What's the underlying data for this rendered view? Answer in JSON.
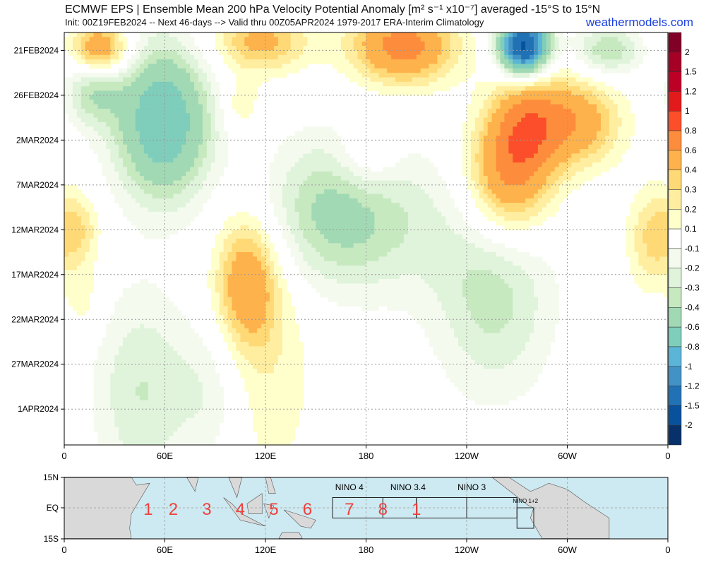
{
  "header": {
    "title": "ECMWF EPS | Ensemble Mean 200 hPa Velocity Potential Anomaly [m² s⁻¹ x10⁻⁷] averaged -15°S to 15°N",
    "subtitle": "Init: 00Z19FEB2024 -- Next 46-days --> Valid thru 00Z05APR2024 1979-2017 ERA-Interim Climatology",
    "brand": "weathermodels.com"
  },
  "chart_data": {
    "type": "heatmap",
    "x_range_lon_east": [
      0,
      360
    ],
    "x_ticks": [
      {
        "lon": 0,
        "label": "0"
      },
      {
        "lon": 60,
        "label": "60E"
      },
      {
        "lon": 120,
        "label": "120E"
      },
      {
        "lon": 180,
        "label": "180"
      },
      {
        "lon": 240,
        "label": "120W"
      },
      {
        "lon": 300,
        "label": "60W"
      },
      {
        "lon": 360,
        "label": "0"
      }
    ],
    "y_range": [
      "19FEB2024",
      "05APR2024"
    ],
    "y_ticks": [
      {
        "day": 2,
        "label": "21FEB2024"
      },
      {
        "day": 7,
        "label": "26FEB2024"
      },
      {
        "day": 12,
        "label": "2MAR2024"
      },
      {
        "day": 17,
        "label": "7MAR2024"
      },
      {
        "day": 22,
        "label": "12MAR2024"
      },
      {
        "day": 27,
        "label": "17MAR2024"
      },
      {
        "day": 32,
        "label": "22MAR2024"
      },
      {
        "day": 37,
        "label": "27MAR2024"
      },
      {
        "day": 42,
        "label": "1APR2024"
      }
    ],
    "grid": true,
    "levels": [
      -2,
      -1.5,
      -1.2,
      -1,
      -0.8,
      -0.6,
      -0.4,
      -0.3,
      -0.2,
      -0.1,
      0.1,
      0.2,
      0.3,
      0.4,
      0.6,
      0.8,
      1,
      1.2,
      1.5,
      2
    ],
    "colorbar_labels": [
      "2",
      "1.5",
      "1.2",
      "1",
      "0.8",
      "0.6",
      "0.4",
      "0.3",
      "0.2",
      "0.1",
      "-0.1",
      "-0.2",
      "-0.3",
      "-0.4",
      "-0.6",
      "-0.8",
      "-1",
      "-1.2",
      "-1.5",
      "-2"
    ],
    "colors": [
      "#08306b",
      "#08519c",
      "#2171b5",
      "#4292c6",
      "#5bb5d6",
      "#7fcdbb",
      "#a1d9b4",
      "#c7e9c0",
      "#e0f3db",
      "#f4fbee",
      "#ffffff",
      "#ffffcc",
      "#ffeda0",
      "#fed976",
      "#feb24c",
      "#fd8d3c",
      "#fc4e2a",
      "#e31a1c",
      "#bd0026",
      "#a50026",
      "#800026"
    ],
    "anomaly_features": [
      {
        "lon": 21,
        "day": 2,
        "value": 0.7,
        "slon": 12,
        "sday": 2.2
      },
      {
        "lon": 117,
        "day": 1,
        "value": 0.45,
        "slon": 20,
        "sday": 2.5
      },
      {
        "lon": 202,
        "day": 1.5,
        "value": 0.7,
        "slon": 22,
        "sday": 3
      },
      {
        "lon": 277,
        "day": 10,
        "value": 0.5,
        "slon": 15,
        "sday": 4
      },
      {
        "lon": 265,
        "day": 16,
        "value": 0.65,
        "slon": 18,
        "sday": 5
      },
      {
        "lon": 307,
        "day": 10,
        "value": 0.5,
        "slon": 18,
        "sday": 3.5
      },
      {
        "lon": 181,
        "day": 14,
        "value": 0.22,
        "slon": 14,
        "sday": 3
      },
      {
        "lon": 105,
        "day": 8,
        "value": 0.2,
        "slon": 8,
        "sday": 2
      },
      {
        "lon": 109,
        "day": 28,
        "value": 0.5,
        "slon": 13,
        "sday": 5
      },
      {
        "lon": 120,
        "day": 36,
        "value": 0.18,
        "slon": 22,
        "sday": 12
      },
      {
        "lon": 8,
        "day": 22,
        "value": 0.3,
        "slon": 10,
        "sday": 3
      },
      {
        "lon": 350,
        "day": 23,
        "value": 0.3,
        "slon": 10,
        "sday": 4
      },
      {
        "lon": 12,
        "day": 30,
        "value": 0.15,
        "slon": 8,
        "sday": 3
      },
      {
        "lon": 59,
        "day": 10,
        "value": -0.8,
        "slon": 20,
        "sday": 6
      },
      {
        "lon": 17,
        "day": 6,
        "value": -0.4,
        "slon": 12,
        "sday": 3
      },
      {
        "lon": 156,
        "day": 20,
        "value": -0.4,
        "slon": 28,
        "sday": 6
      },
      {
        "lon": 274,
        "day": 1.5,
        "value": -1.6,
        "slon": 10,
        "sday": 2.2
      },
      {
        "lon": 324,
        "day": 2,
        "value": -0.4,
        "slon": 14,
        "sday": 2
      },
      {
        "lon": 256,
        "day": 29,
        "value": -0.35,
        "slon": 25,
        "sday": 8
      },
      {
        "lon": 46,
        "day": 40,
        "value": -0.3,
        "slon": 20,
        "sday": 8
      },
      {
        "lon": 197,
        "day": 21,
        "value": -0.2,
        "slon": 30,
        "sday": 6
      },
      {
        "lon": 88,
        "day": 40,
        "value": -0.2,
        "slon": 15,
        "sday": 6
      }
    ]
  },
  "map": {
    "lat_labels": [
      "15N",
      "EQ",
      "15S"
    ],
    "nino_labels": [
      {
        "label": "NINO 4",
        "lon": 170
      },
      {
        "label": "NINO 3.4",
        "lon": 205
      },
      {
        "label": "NINO 3",
        "lon": 243
      },
      {
        "label": "NINO 1+2",
        "lon": 275
      }
    ],
    "nino_boxes": [
      {
        "lon": [
          160,
          210
        ],
        "lat": [
          -5,
          5
        ]
      },
      {
        "lon": [
          190,
          240
        ],
        "lat": [
          -5,
          5
        ]
      },
      {
        "lon": [
          210,
          270
        ],
        "lat": [
          -5,
          5
        ]
      },
      {
        "lon": [
          270,
          280
        ],
        "lat": [
          -10,
          0
        ]
      }
    ],
    "mjo_phases": [
      {
        "label": "1",
        "lon": 50
      },
      {
        "label": "2",
        "lon": 65
      },
      {
        "label": "3",
        "lon": 85
      },
      {
        "label": "4",
        "lon": 105
      },
      {
        "label": "5",
        "lon": 125
      },
      {
        "label": "6",
        "lon": 145
      },
      {
        "label": "7",
        "lon": 170
      },
      {
        "label": "8",
        "lon": 190
      },
      {
        "label": "1",
        "lon": 210
      }
    ],
    "phase_color": "#f0403c",
    "ocean_color": "#cde9f1",
    "land_color": "#d9d9d9"
  }
}
